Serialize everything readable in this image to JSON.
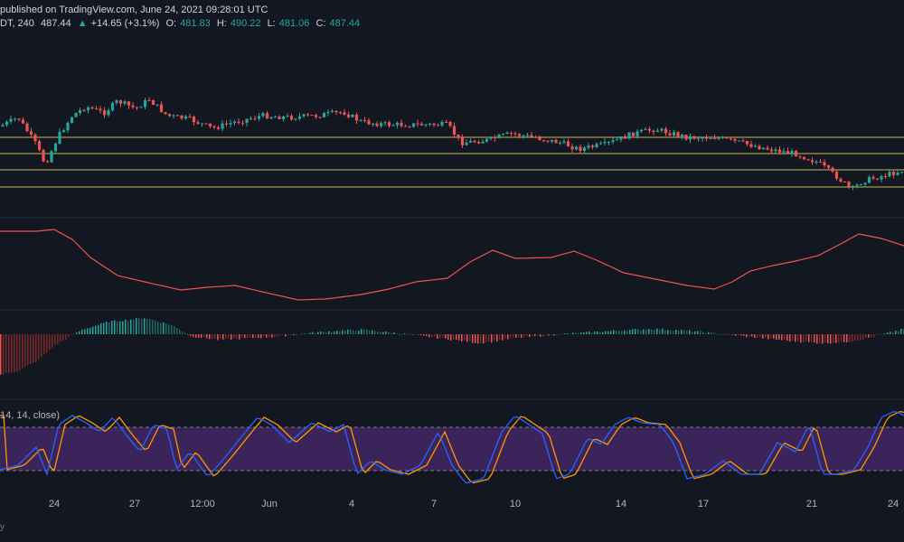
{
  "header": {
    "published": "published on TradingView.com, June 24, 2021 09:28:01 UTC",
    "symbol": "DT, 240",
    "last": "487.44",
    "change": "+14.65 (+3.1%)",
    "o_label": "O:",
    "o_value": "481.83",
    "h_label": "H:",
    "h_value": "490.22",
    "l_label": "L:",
    "l_value": "481.06",
    "c_label": "C:",
    "c_value": "487.44"
  },
  "stoch_label": "14, 14, close)",
  "xaxis": {
    "ticks": [
      "24",
      "27",
      "12:00",
      "Jun",
      "4",
      "7",
      "10",
      "14",
      "17",
      "21",
      "24"
    ]
  },
  "corner": "y",
  "colors": {
    "background": "#131722",
    "up": "#26a69a",
    "down": "#ef5350",
    "levels": "#c8b84a",
    "stoch_band": "#4a2a6e",
    "stoch_k": "#2962ff",
    "stoch_d": "#ff9800",
    "rsi_line": "#ef5350"
  }
}
